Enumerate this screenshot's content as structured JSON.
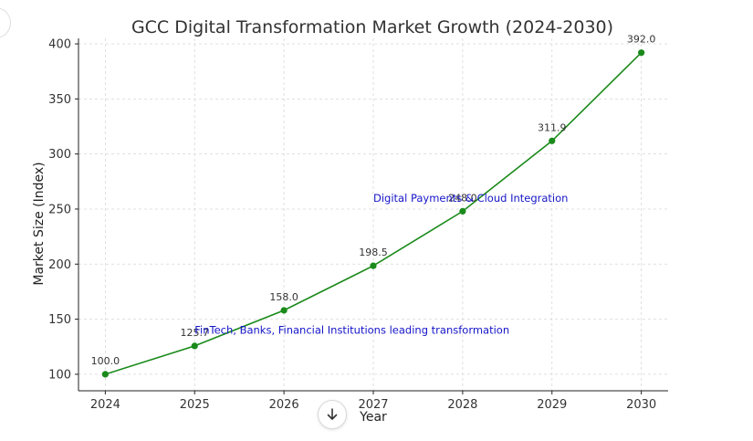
{
  "chart_data": {
    "type": "line",
    "title": "GCC Digital Transformation Market Growth (2024-2030)",
    "xlabel": "Year",
    "ylabel": "Market Size (Index)",
    "x": [
      2024,
      2025,
      2026,
      2027,
      2028,
      2029,
      2030
    ],
    "series": [
      {
        "values": [
          100.0,
          125.7,
          158.0,
          198.5,
          248.0,
          311.9,
          392.0
        ],
        "labels": [
          "100.0",
          "125.7",
          "158.0",
          "198.5",
          "248.0",
          "311.9",
          "392.0"
        ]
      }
    ],
    "xticks": [
      "2024",
      "2025",
      "2026",
      "2027",
      "2028",
      "2029",
      "2030"
    ],
    "yticks": [
      "100",
      "150",
      "200",
      "250",
      "300",
      "350",
      "400"
    ],
    "ytick_values": [
      100,
      150,
      200,
      250,
      300,
      350,
      400
    ],
    "xlim": [
      2023.7,
      2030.3
    ],
    "ylim": [
      85,
      405
    ],
    "grid": true,
    "line_color": "#1a8a1a",
    "annotation_color": "#1515c8",
    "annotations": [
      {
        "text": "FinTech, Banks, Financial Institutions leading transformation",
        "x": 2025,
        "y": 140
      },
      {
        "text": "Digital Payments & Cloud Integration",
        "x": 2027,
        "y": 260
      }
    ]
  },
  "ui": {
    "scroll_icon": "arrow-down-icon"
  }
}
